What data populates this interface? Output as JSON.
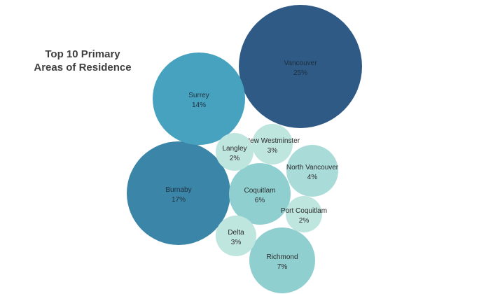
{
  "chart_data": {
    "type": "bubble",
    "title_lines": [
      "Top 10 Primary",
      "Areas of Residence"
    ],
    "colors": {
      "darkest": "#2f5a86",
      "dark": "#3b86a8",
      "mid": "#47a2bf",
      "light": "#8fcfd0",
      "lighter": "#a9dcd9",
      "lightest": "#bfe5df"
    },
    "points": [
      {
        "name": "Vancouver",
        "value_label": "25%",
        "value": 25,
        "color_key": "darkest"
      },
      {
        "name": "Burnaby",
        "value_label": "17%",
        "value": 17,
        "color_key": "dark"
      },
      {
        "name": "Surrey",
        "value_label": "14%",
        "value": 14,
        "color_key": "mid"
      },
      {
        "name": "Richmond",
        "value_label": "7%",
        "value": 7,
        "color_key": "light"
      },
      {
        "name": "Coquitlam",
        "value_label": "6%",
        "value": 6,
        "color_key": "light"
      },
      {
        "name": "North Vancouver",
        "value_label": "4%",
        "value": 4,
        "color_key": "lighter"
      },
      {
        "name": "New Westminster",
        "value_label": "3%",
        "value": 3,
        "color_key": "lightest"
      },
      {
        "name": "Delta",
        "value_label": "3%",
        "value": 3,
        "color_key": "lightest"
      },
      {
        "name": "Langley",
        "value_label": "2%",
        "value": 2,
        "color_key": "lightest"
      },
      {
        "name": "Port Coquitlam",
        "value_label": "2%",
        "value": 2,
        "color_key": "lightest"
      }
    ]
  }
}
